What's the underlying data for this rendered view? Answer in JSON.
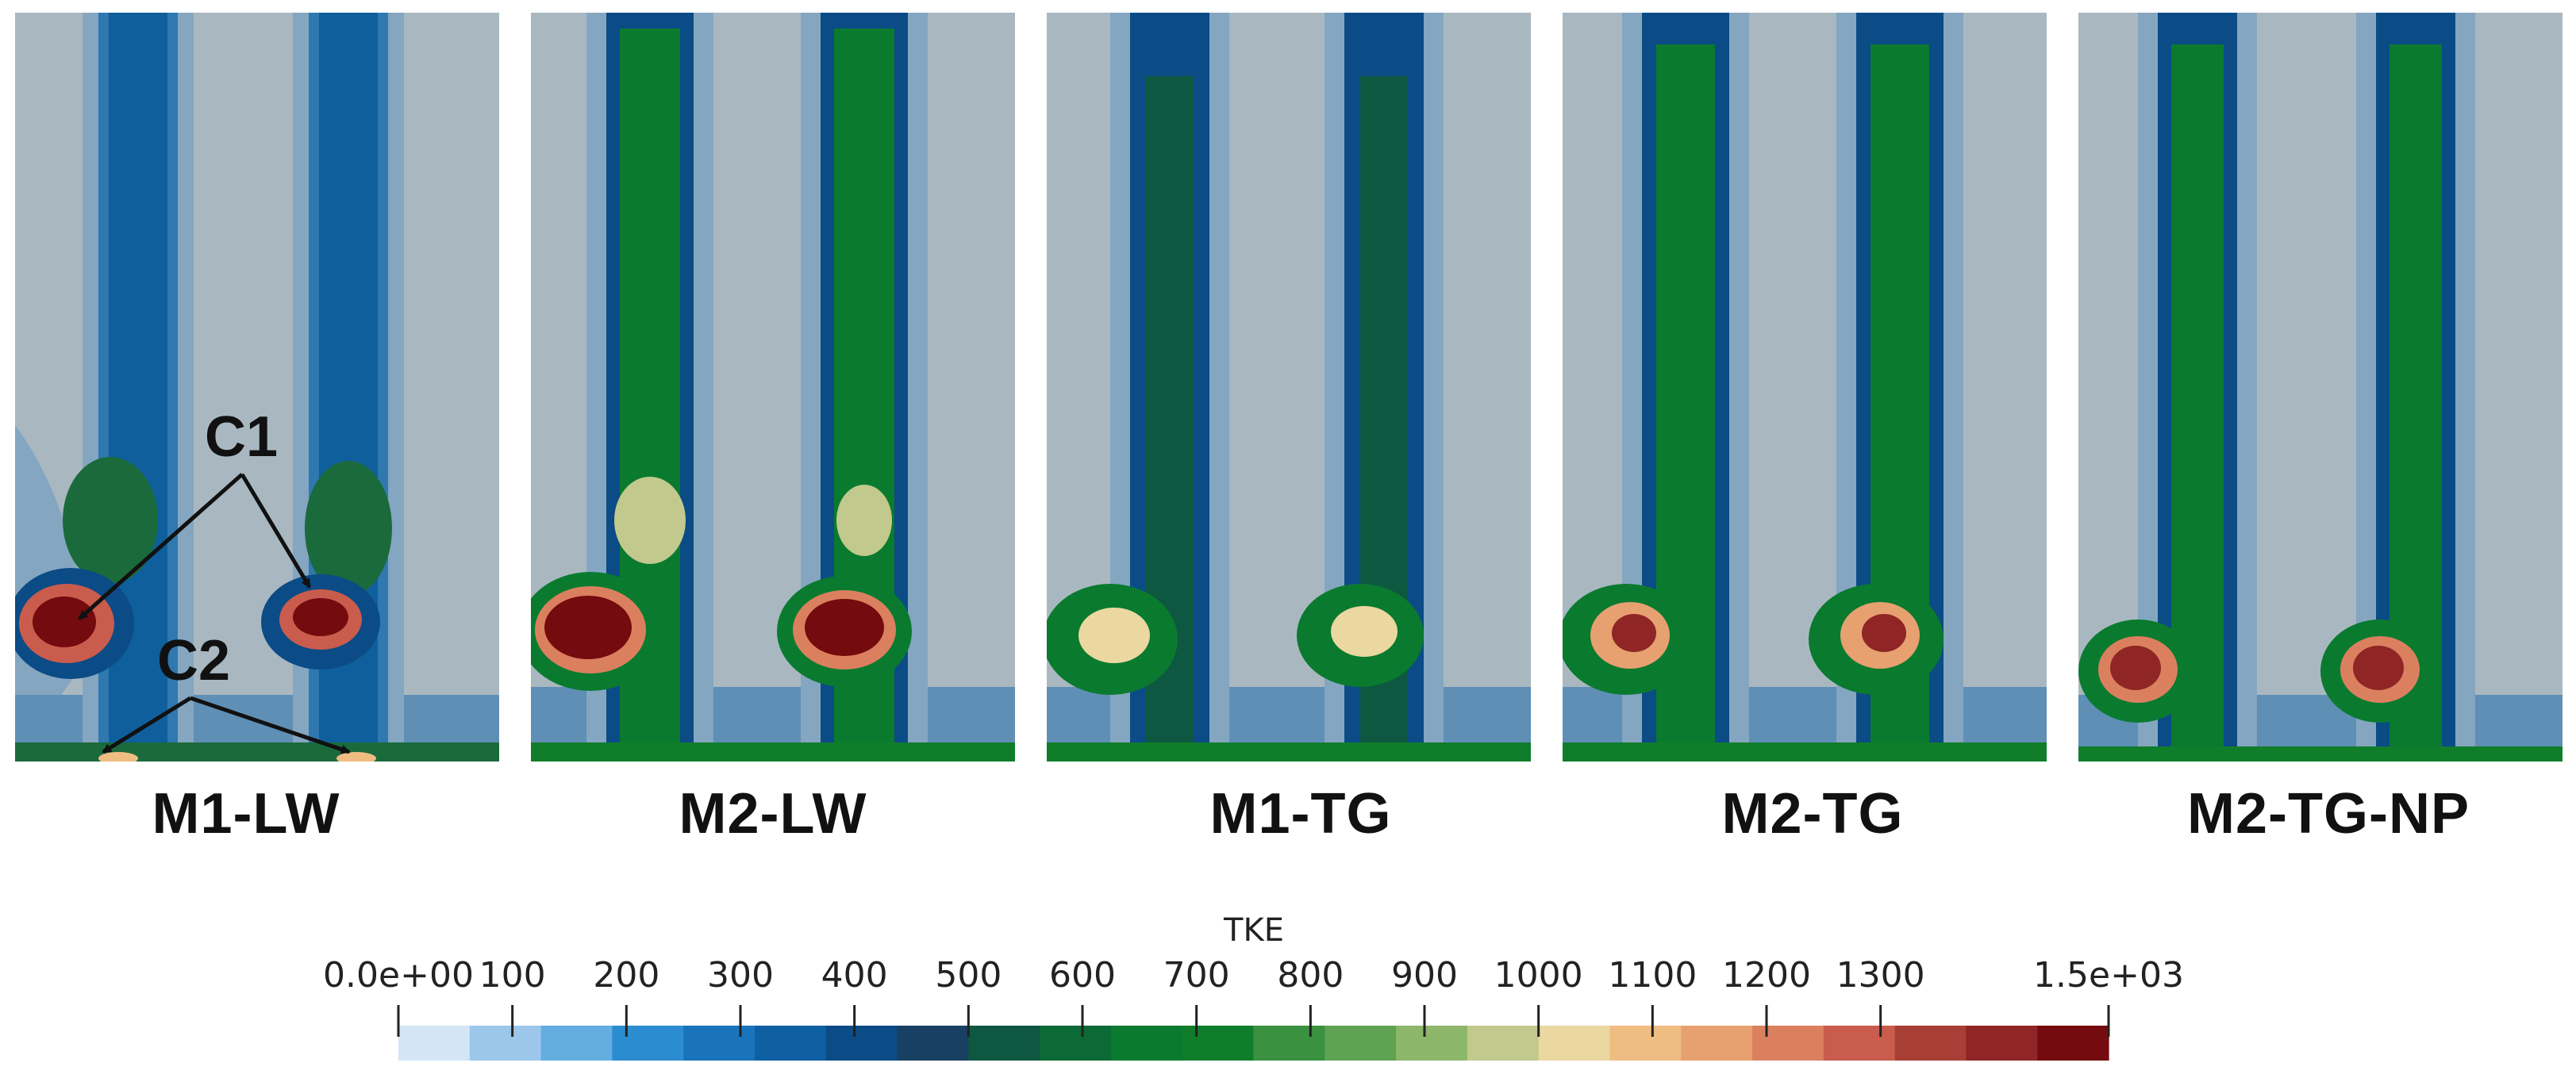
{
  "panels": [
    {
      "label": "M1-LW"
    },
    {
      "label": "M2-LW"
    },
    {
      "label": "M1-TG"
    },
    {
      "label": "M2-TG"
    },
    {
      "label": "M2-TG-NP"
    }
  ],
  "annotations": {
    "c1": "C1",
    "c2": "C2"
  },
  "colorbar": {
    "title": "TKE",
    "ticks": [
      "0.0e+00",
      "100",
      "200",
      "300",
      "400",
      "500",
      "600",
      "700",
      "800",
      "900",
      "1000",
      "1100",
      "1200",
      "1300",
      "1.5e+03"
    ],
    "colors": [
      "#d4e6f6",
      "#9cc7ea",
      "#63ade0",
      "#2b8ccf",
      "#1974bb",
      "#0f60a3",
      "#0b4b86",
      "#174063",
      "#0e5741",
      "#0b6a35",
      "#0a7a2f",
      "#107d2b",
      "#3a913f",
      "#5fa352",
      "#8cb66a",
      "#c2c98c",
      "#ebd7a0",
      "#efbc82",
      "#e7a070",
      "#db805e",
      "#c95c4c",
      "#a83f36",
      "#8f2525",
      "#740b0e"
    ]
  },
  "colors": {
    "background": "#a9b8c0",
    "jet_core_green": "#0d7a33",
    "peak_red": "#7a0b10"
  }
}
